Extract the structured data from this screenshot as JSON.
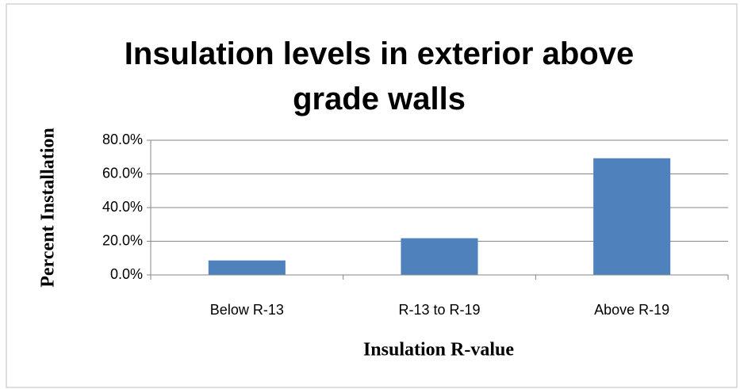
{
  "chart_data": {
    "type": "bar",
    "title": "Insulation levels in exterior above grade walls",
    "x_label": "Insulation R-value",
    "y_label": "Percent Installation",
    "categories": [
      "Below R-13",
      "R-13 to R-19",
      "Above R-19"
    ],
    "values": [
      8.6,
      21.8,
      69.3
    ],
    "color": "#4f81bd",
    "ylim": [
      0,
      80
    ],
    "yticks": [
      {
        "value": 0,
        "label": "0.0%"
      },
      {
        "value": 20,
        "label": "20.0%"
      },
      {
        "value": 40,
        "label": "40.0%"
      },
      {
        "value": 60,
        "label": "60.0%"
      },
      {
        "value": 80,
        "label": "80.0%"
      }
    ],
    "grid": true
  }
}
